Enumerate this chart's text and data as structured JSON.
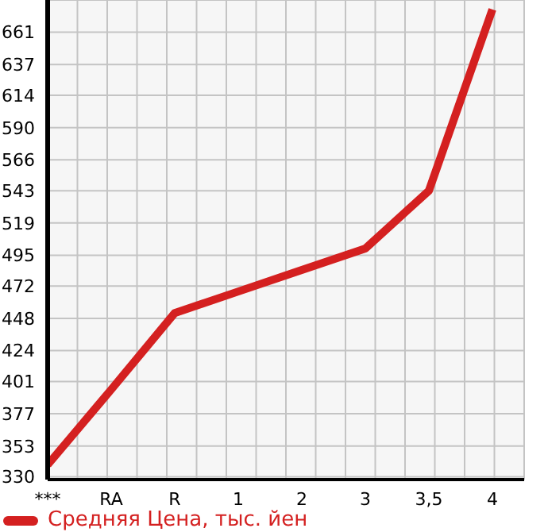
{
  "chart_data": {
    "type": "line",
    "categories": [
      "***",
      "RA",
      "R",
      "1",
      "2",
      "3",
      "3,5",
      "4"
    ],
    "series": [
      {
        "name": "Средняя Цена, тыс. йен",
        "color": "#d42020",
        "values": [
          339,
          395,
          452,
          468,
          484,
          500,
          543,
          678
        ]
      }
    ],
    "ylim": [
      328,
      685
    ],
    "yticks": [
      330,
      353,
      377,
      401,
      424,
      448,
      472,
      495,
      519,
      543,
      566,
      590,
      614,
      637,
      661
    ],
    "grid": true,
    "legend": "bottom left",
    "marker": "none",
    "line_style": "solid"
  }
}
